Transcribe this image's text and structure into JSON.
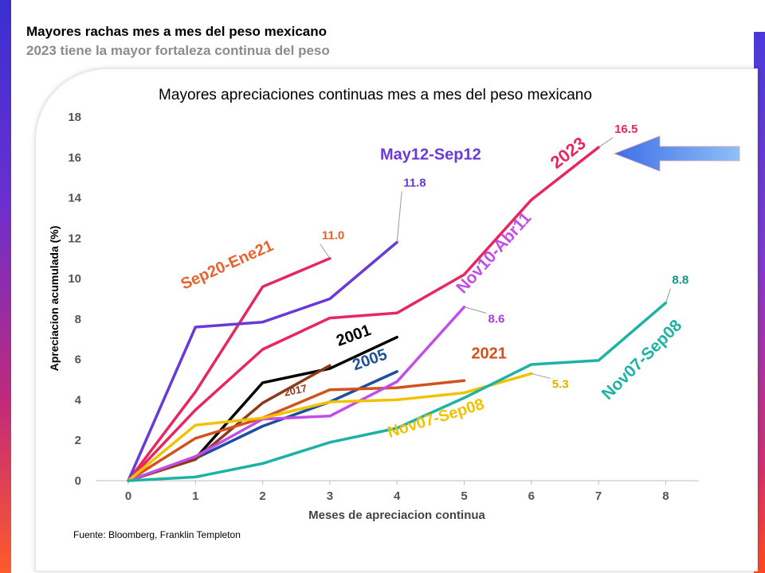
{
  "header": {
    "title": "Mayores rachas mes a mes del peso mexicano",
    "subtitle": "2023 tiene la mayor fortaleza continua del peso"
  },
  "source": "Fuente: Bloomberg, Franklin Templeton",
  "chart_data": {
    "type": "line",
    "title": "Mayores apreciaciones continuas mes a mes del peso mexicano",
    "xlabel": "Meses de apreciacion continua",
    "ylabel": "Apreciacion acumulada (%)",
    "xlim": [
      0,
      8
    ],
    "ylim": [
      0,
      18
    ],
    "x_ticks": [
      "0",
      "1",
      "2",
      "3",
      "4",
      "5",
      "6",
      "7",
      "8"
    ],
    "y_ticks": [
      "0",
      "2",
      "4",
      "6",
      "8",
      "10",
      "12",
      "14",
      "16",
      "18"
    ],
    "grid": false,
    "series": [
      {
        "name": "Sep20-Ene21",
        "color": "#e8265f",
        "x": [
          0,
          1,
          2,
          3
        ],
        "values": [
          0,
          4.4,
          9.6,
          11.0
        ],
        "end_label": "11.0",
        "end_label_color": "#e8632b"
      },
      {
        "name": "May12-Sep12",
        "color": "#6a3ad8",
        "x": [
          0,
          1,
          2,
          3,
          4
        ],
        "values": [
          0,
          7.6,
          7.85,
          9.0,
          11.8
        ],
        "end_label": "11.8",
        "end_label_color": "#6a3ad8"
      },
      {
        "name": "2023",
        "color": "#e8265f",
        "x": [
          0,
          1,
          2,
          3,
          4,
          5,
          6,
          7
        ],
        "values": [
          0,
          3.5,
          6.5,
          8.05,
          8.3,
          10.2,
          13.9,
          16.5
        ],
        "end_label": "16.5",
        "end_label_color": "#e8265f"
      },
      {
        "name": "2001",
        "color": "#000000",
        "x": [
          0,
          1,
          2,
          3,
          4
        ],
        "values": [
          0,
          1.1,
          4.85,
          5.55,
          7.1
        ]
      },
      {
        "name": "2005",
        "color": "#1f4e9c",
        "x": [
          0,
          1,
          2,
          3,
          4
        ],
        "values": [
          0,
          1.1,
          2.7,
          3.9,
          5.4
        ]
      },
      {
        "name": "2017",
        "color": "#8b3a1a",
        "x": [
          0,
          1,
          2,
          3
        ],
        "values": [
          0,
          1.05,
          3.85,
          5.7
        ]
      },
      {
        "name": "2021",
        "color": "#d2521e",
        "x": [
          0,
          1,
          2,
          3,
          4,
          5
        ],
        "values": [
          0,
          2.1,
          3.1,
          4.5,
          4.6,
          4.95
        ]
      },
      {
        "name": "Nov10-Abr11",
        "color": "#c24ee8",
        "x": [
          0,
          1,
          2,
          3,
          4,
          5
        ],
        "values": [
          0,
          1.2,
          3.05,
          3.2,
          4.9,
          8.6
        ],
        "end_label": "8.6",
        "end_label_color": "#a840d8"
      },
      {
        "name": "Nov07-Sep08",
        "color": "#f2c200",
        "x": [
          0,
          1,
          2,
          3,
          4,
          5,
          6
        ],
        "values": [
          0,
          2.75,
          3.1,
          3.9,
          4.0,
          4.35,
          5.3
        ],
        "end_label": "5.3",
        "end_label_color": "#e0b000"
      },
      {
        "name": "Nov07-Sep08",
        "color": "#1db3a4",
        "x": [
          0,
          1,
          2,
          3,
          4,
          5,
          6,
          7,
          8
        ],
        "values": [
          0,
          0.18,
          0.85,
          1.9,
          2.6,
          4.1,
          5.75,
          5.95,
          8.8
        ],
        "end_label": "8.8",
        "end_label_color": "#0f9488"
      }
    ],
    "annotations": [
      {
        "text": "May12-Sep12",
        "color": "#6a3ad8",
        "x": 4.5,
        "y": 15.9,
        "rotate": 0,
        "size": 20
      },
      {
        "text": "2023",
        "color": "#e8265f",
        "x": 6.6,
        "y": 16.0,
        "rotate": -38,
        "size": 22
      },
      {
        "text": "Sep20-Ene21",
        "color": "#e8632b",
        "x": 1.5,
        "y": 10.45,
        "rotate": -24,
        "size": 20
      },
      {
        "text": "Nov10-Abr11",
        "color": "#c24ee8",
        "x": 5.5,
        "y": 11.1,
        "rotate": -48,
        "size": 21
      },
      {
        "text": "2001",
        "color": "#000000",
        "x": 3.38,
        "y": 6.95,
        "rotate": -20,
        "size": 20
      },
      {
        "text": "2005",
        "color": "#1f4e9c",
        "x": 3.62,
        "y": 5.75,
        "rotate": -20,
        "size": 20
      },
      {
        "text": "2021",
        "color": "#d2521e",
        "x": 5.37,
        "y": 6.05,
        "rotate": 0,
        "size": 20
      },
      {
        "text": "2017",
        "color": "#8b3a1a",
        "x": 2.5,
        "y": 4.3,
        "rotate": -12,
        "size": 13
      },
      {
        "text": "Nov07-Sep08",
        "color": "#f2c200",
        "x": 4.6,
        "y": 2.85,
        "rotate": -17,
        "size": 20
      },
      {
        "text": "Nov07-Sep08",
        "color": "#1db3a4",
        "x": 7.7,
        "y": 5.8,
        "rotate": -45,
        "size": 21
      }
    ],
    "highlight_arrow": {
      "color": "#3d6fe8",
      "points_to": "2023"
    }
  }
}
